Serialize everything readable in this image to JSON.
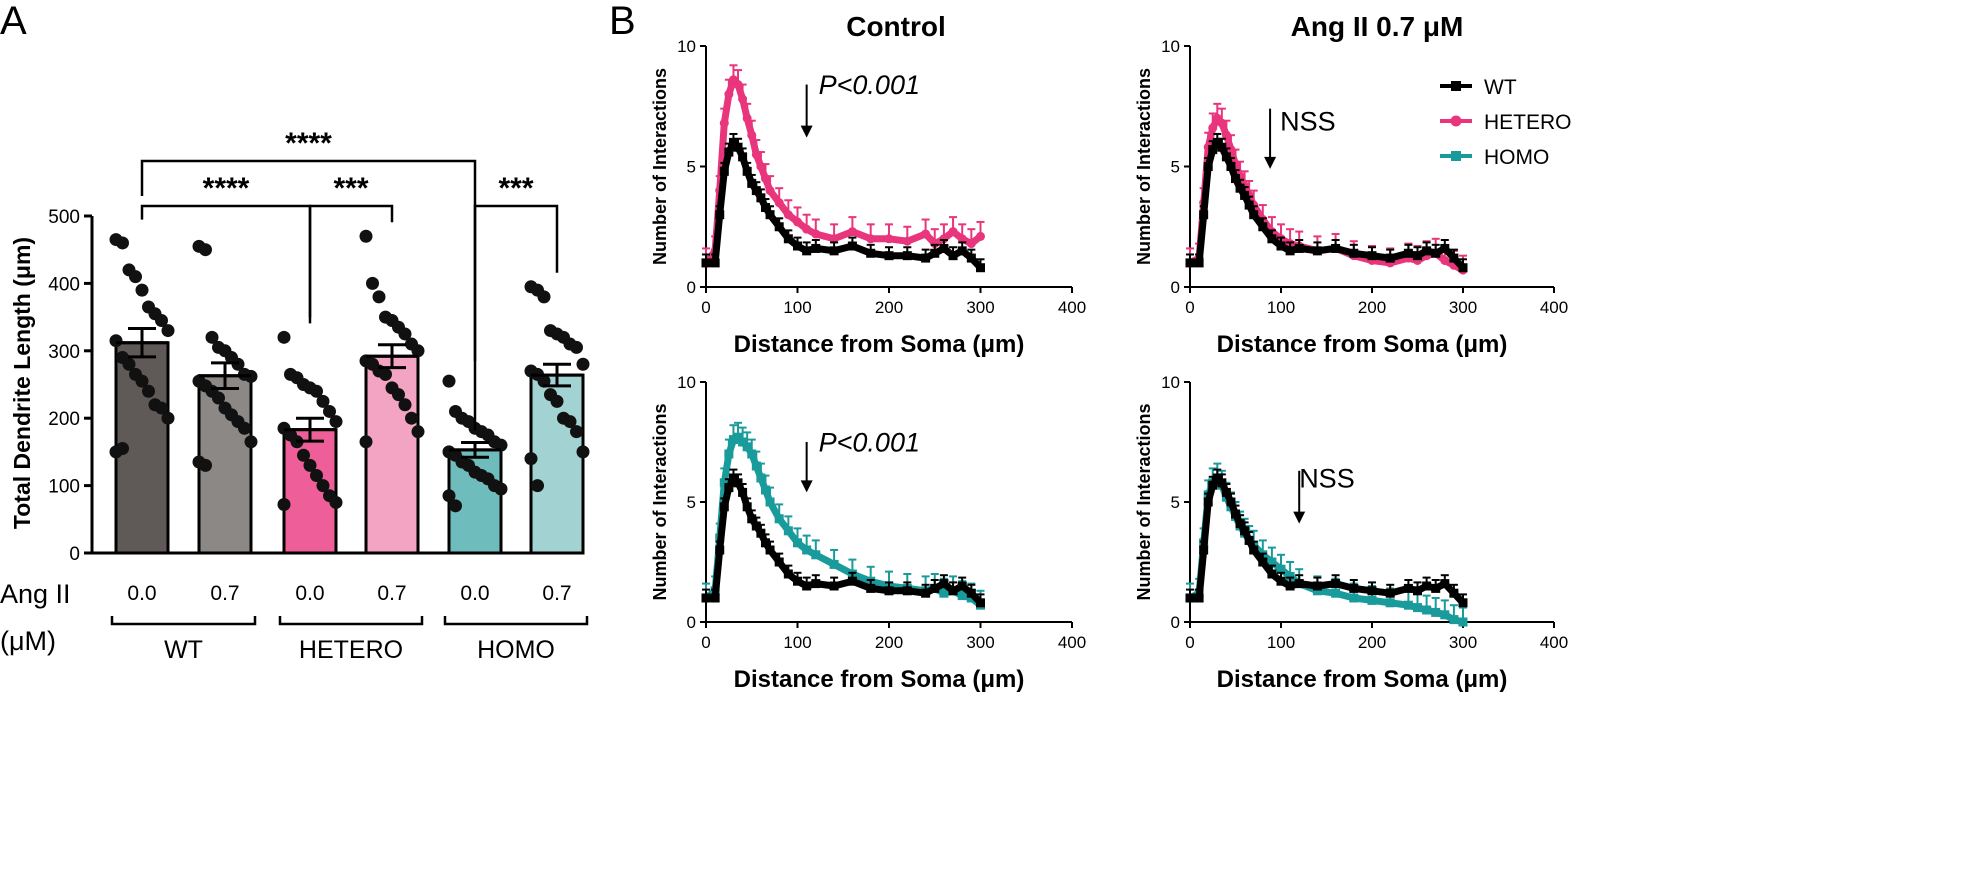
{
  "panel_labels": {
    "a": "A",
    "b": "B"
  },
  "colors": {
    "wt_dark": "#5f5958",
    "wt_light": "#8b8885",
    "hetero_dark": "#ee5f9a",
    "hetero_light": "#f2a4c2",
    "homo_dark": "#6fbcbc",
    "homo_light": "#a3d2d2",
    "wt_line": "#000000",
    "hetero_line": "#e8357c",
    "homo_line": "#1a9b9b",
    "dot": "#111111"
  },
  "panel_a": {
    "axis_ticks": [
      "0",
      "100",
      "200",
      "300",
      "400",
      "500"
    ],
    "angii_label_1": "Ang II",
    "angii_label_2": "(μM)",
    "doses": [
      "0.0",
      "0.7",
      "0.0",
      "0.7",
      "0.0",
      "0.7"
    ],
    "groups": [
      "WT",
      "HETERO",
      "HOMO"
    ],
    "significance": [
      {
        "label": "****",
        "from": 0,
        "to": 4
      },
      {
        "label": "****",
        "from": 0,
        "to": 2
      },
      {
        "label": "***",
        "from": 2,
        "to": 3
      },
      {
        "label": "***",
        "from": 4,
        "to": 5
      }
    ]
  },
  "panel_b": {
    "col_titles": [
      "Control",
      "Ang II 0.7 μM"
    ],
    "xticks": [
      "0",
      "100",
      "200",
      "300",
      "400"
    ],
    "yticks": [
      "0",
      "5",
      "10"
    ],
    "legend": [
      "WT",
      "HETERO",
      "HOMO"
    ],
    "annotations": [
      "P<0.001",
      "NSS",
      "P<0.001",
      "NSS"
    ]
  },
  "chart_data": [
    {
      "type": "bar",
      "title": "",
      "xlabel": "Ang II (μM)",
      "ylabel": "Total Dendrite Length (μm)",
      "ylim": [
        0,
        500
      ],
      "categories": [
        "WT 0.0",
        "WT 0.7",
        "HETERO 0.0",
        "HETERO 0.7",
        "HOMO 0.0",
        "HOMO 0.7"
      ],
      "values": [
        312,
        263,
        183,
        292,
        153,
        264
      ],
      "sem": [
        21,
        19,
        17,
        17,
        11,
        16
      ],
      "points": [
        [
          465,
          460,
          420,
          410,
          390,
          365,
          355,
          345,
          330,
          315,
          290,
          280,
          265,
          255,
          240,
          220,
          215,
          200,
          150,
          155
        ],
        [
          455,
          450,
          320,
          305,
          300,
          290,
          280,
          265,
          262,
          255,
          248,
          240,
          230,
          215,
          205,
          195,
          185,
          165,
          135,
          130
        ],
        [
          320,
          265,
          260,
          250,
          245,
          240,
          225,
          210,
          195,
          185,
          175,
          165,
          145,
          130,
          115,
          100,
          85,
          75,
          72
        ],
        [
          470,
          400,
          380,
          350,
          345,
          335,
          325,
          310,
          300,
          285,
          280,
          270,
          265,
          245,
          235,
          220,
          200,
          180,
          165
        ],
        [
          255,
          210,
          200,
          195,
          185,
          180,
          175,
          165,
          160,
          150,
          145,
          135,
          130,
          120,
          115,
          110,
          100,
          95,
          85,
          70
        ],
        [
          395,
          390,
          380,
          330,
          325,
          320,
          310,
          305,
          280,
          270,
          265,
          255,
          235,
          225,
          200,
          195,
          180,
          150,
          140,
          100
        ]
      ]
    },
    {
      "type": "line",
      "title": "Control",
      "xlabel": "Distance from Soma (μm)",
      "ylabel": "Number of Interactions",
      "xlim": [
        0,
        400
      ],
      "ylim": [
        0,
        10
      ],
      "annotation": "P<0.001",
      "series": [
        {
          "name": "WT",
          "x": [
            0,
            10,
            15,
            20,
            25,
            30,
            35,
            40,
            45,
            50,
            55,
            60,
            65,
            70,
            80,
            90,
            100,
            110,
            120,
            140,
            160,
            180,
            200,
            220,
            240,
            250,
            260,
            270,
            280,
            290,
            300
          ],
          "y": [
            1,
            1,
            3,
            4.8,
            5.6,
            6,
            5.8,
            5.4,
            4.8,
            4.3,
            4,
            3.7,
            3.3,
            3,
            2.5,
            2,
            1.7,
            1.5,
            1.6,
            1.5,
            1.7,
            1.4,
            1.3,
            1.3,
            1.2,
            1.4,
            1.6,
            1.3,
            1.5,
            1.2,
            0.8
          ]
        },
        {
          "name": "HETERO",
          "x": [
            0,
            10,
            15,
            20,
            25,
            30,
            35,
            40,
            45,
            50,
            55,
            60,
            65,
            70,
            80,
            90,
            100,
            110,
            120,
            140,
            160,
            180,
            200,
            220,
            240,
            250,
            260,
            270,
            280,
            290,
            300
          ],
          "y": [
            1,
            1.5,
            4,
            6.8,
            8,
            8.6,
            8.4,
            7.8,
            7,
            6.3,
            5.5,
            5,
            4.5,
            4,
            3.5,
            3,
            2.7,
            2.4,
            2.2,
            2,
            2.3,
            2,
            2,
            1.9,
            2.2,
            1.8,
            2,
            2.3,
            2,
            1.8,
            2.1
          ]
        }
      ]
    },
    {
      "type": "line",
      "title": "Ang II 0.7 μM",
      "xlabel": "Distance from Soma (μm)",
      "ylabel": "Number of Interactions",
      "xlim": [
        0,
        400
      ],
      "ylim": [
        0,
        10
      ],
      "annotation": "NSS",
      "series": [
        {
          "name": "WT",
          "x": [
            0,
            10,
            15,
            20,
            25,
            30,
            35,
            40,
            45,
            50,
            55,
            60,
            65,
            70,
            80,
            90,
            100,
            110,
            120,
            140,
            160,
            180,
            200,
            220,
            240,
            250,
            260,
            270,
            280,
            290,
            300
          ],
          "y": [
            1,
            1,
            3,
            5,
            5.7,
            6,
            5.8,
            5.4,
            5,
            4.5,
            4.1,
            3.8,
            3.4,
            3,
            2.5,
            2,
            1.7,
            1.5,
            1.6,
            1.5,
            1.6,
            1.4,
            1.3,
            1.2,
            1.4,
            1.3,
            1.5,
            1.4,
            1.6,
            1.2,
            0.8
          ]
        },
        {
          "name": "HETERO",
          "x": [
            0,
            10,
            15,
            20,
            25,
            30,
            35,
            40,
            45,
            50,
            55,
            60,
            65,
            70,
            80,
            90,
            100,
            110,
            120,
            140,
            160,
            180,
            200,
            220,
            240,
            250,
            260,
            270,
            280,
            290,
            300
          ],
          "y": [
            1,
            1.2,
            3.5,
            5.8,
            6.6,
            7,
            6.8,
            6.3,
            5.7,
            5.1,
            4.6,
            4.2,
            3.8,
            3.4,
            2.8,
            2.3,
            2,
            1.8,
            1.7,
            1.5,
            1.6,
            1.3,
            1.1,
            1,
            1.2,
            1.1,
            1.3,
            1.4,
            1.1,
            0.9,
            0.7
          ]
        }
      ]
    },
    {
      "type": "line",
      "title": "",
      "xlabel": "Distance from Soma (μm)",
      "ylabel": "Number of Interactions",
      "xlim": [
        0,
        400
      ],
      "ylim": [
        0,
        10
      ],
      "annotation": "P<0.001",
      "series": [
        {
          "name": "WT",
          "x": [
            0,
            10,
            15,
            20,
            25,
            30,
            35,
            40,
            45,
            50,
            55,
            60,
            65,
            70,
            80,
            90,
            100,
            110,
            120,
            140,
            160,
            180,
            200,
            220,
            240,
            250,
            260,
            270,
            280,
            290,
            300
          ],
          "y": [
            1,
            1,
            3,
            4.8,
            5.6,
            6,
            5.8,
            5.4,
            4.8,
            4.3,
            4,
            3.7,
            3.3,
            3,
            2.5,
            2,
            1.7,
            1.5,
            1.6,
            1.5,
            1.7,
            1.4,
            1.3,
            1.3,
            1.2,
            1.4,
            1.6,
            1.3,
            1.5,
            1.2,
            0.8
          ]
        },
        {
          "name": "HOMO",
          "x": [
            0,
            10,
            15,
            20,
            25,
            30,
            35,
            40,
            45,
            50,
            55,
            60,
            65,
            70,
            80,
            90,
            100,
            110,
            120,
            140,
            160,
            180,
            200,
            220,
            240,
            250,
            260,
            270,
            280,
            290,
            300
          ],
          "y": [
            1,
            1.3,
            3.5,
            5.8,
            7,
            7.6,
            7.7,
            7.5,
            7.3,
            7,
            6.5,
            6,
            5.5,
            5,
            4.3,
            3.8,
            3.3,
            3,
            2.8,
            2.4,
            2,
            1.7,
            1.5,
            1.4,
            1.3,
            1.4,
            1.2,
            1.3,
            1.1,
            1,
            0.7
          ]
        }
      ]
    },
    {
      "type": "line",
      "title": "",
      "xlabel": "Distance from Soma (μm)",
      "ylabel": "Number of Interactions",
      "xlim": [
        0,
        400
      ],
      "ylim": [
        0,
        10
      ],
      "annotation": "NSS",
      "series": [
        {
          "name": "WT",
          "x": [
            0,
            10,
            15,
            20,
            25,
            30,
            35,
            40,
            45,
            50,
            55,
            60,
            65,
            70,
            80,
            90,
            100,
            110,
            120,
            140,
            160,
            180,
            200,
            220,
            240,
            250,
            260,
            270,
            280,
            290,
            300
          ],
          "y": [
            1,
            1,
            3,
            5,
            5.7,
            6,
            5.8,
            5.4,
            5,
            4.5,
            4.1,
            3.8,
            3.4,
            3,
            2.5,
            2,
            1.7,
            1.5,
            1.6,
            1.5,
            1.6,
            1.4,
            1.3,
            1.2,
            1.4,
            1.3,
            1.5,
            1.4,
            1.6,
            1.2,
            0.8
          ]
        },
        {
          "name": "HOMO",
          "x": [
            0,
            10,
            15,
            20,
            25,
            30,
            35,
            40,
            45,
            50,
            55,
            60,
            65,
            70,
            80,
            90,
            100,
            110,
            120,
            140,
            160,
            180,
            200,
            220,
            240,
            250,
            260,
            270,
            280,
            290,
            300
          ],
          "y": [
            1,
            1.2,
            3.3,
            5.3,
            5.8,
            6,
            5.7,
            5.2,
            4.8,
            4.4,
            4,
            3.7,
            3.4,
            3.2,
            2.8,
            2.5,
            2.2,
            1.9,
            1.6,
            1.3,
            1.2,
            1,
            0.9,
            0.8,
            0.7,
            0.6,
            0.5,
            0.4,
            0.3,
            0.1,
            0
          ]
        }
      ]
    }
  ]
}
